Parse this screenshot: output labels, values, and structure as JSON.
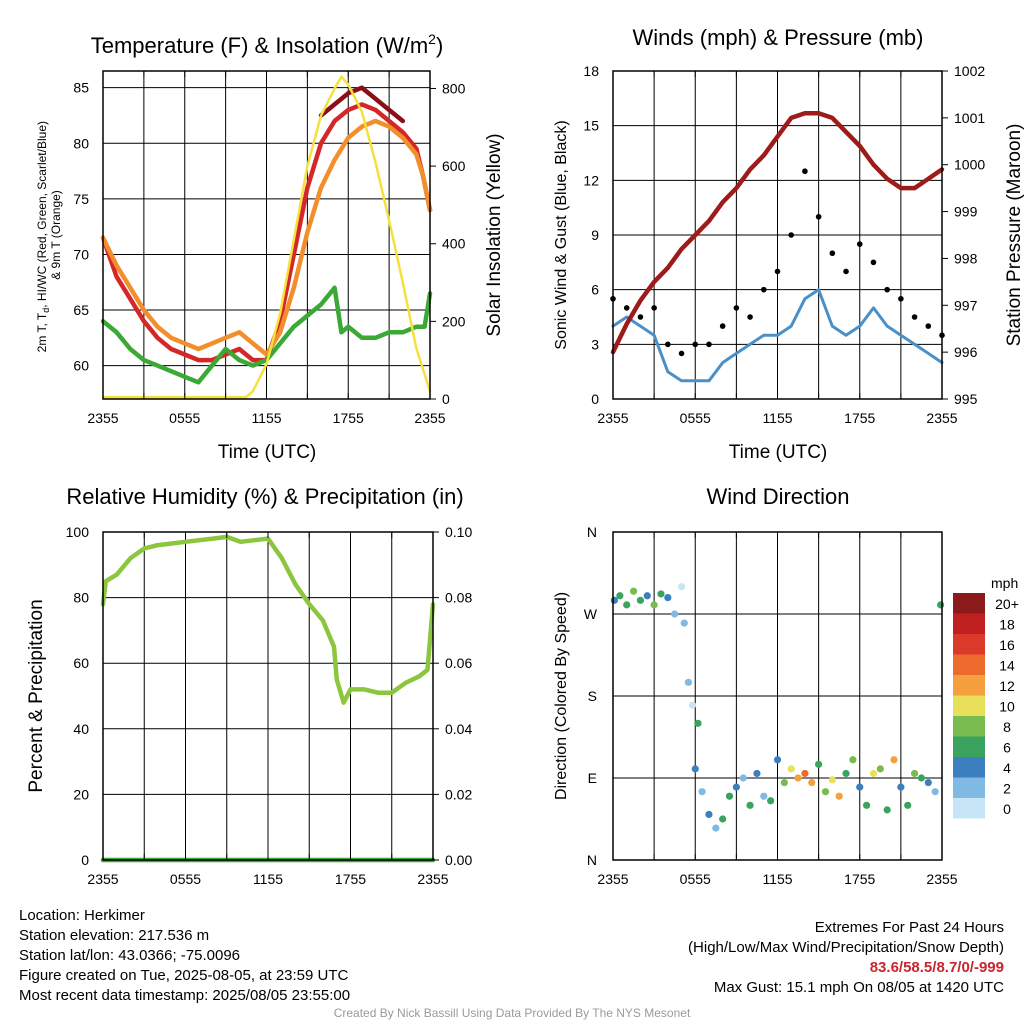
{
  "chart_data": [
    {
      "type": "line",
      "title": "Temperature (F) & Insolation (W/m²)",
      "xlabel": "Time (UTC)",
      "ylabel": "2m T, Td, HI/WC (Red, Green, Scarlet/Blue) & 9m T (Orange)",
      "ylabel_right": "Solar Insolation (Yellow)",
      "x_ticks": [
        "2355",
        "0555",
        "1155",
        "1755",
        "2355"
      ],
      "ylim": [
        57,
        86.5
      ],
      "yticks": [
        60,
        65,
        70,
        75,
        80,
        85
      ],
      "ylim_right": [
        0,
        845
      ],
      "yticks_right": [
        0,
        200,
        400,
        600,
        800
      ],
      "x_hours": [
        0,
        24
      ],
      "grid": true,
      "series": [
        {
          "name": "2m T",
          "color": "#d62728",
          "axis": "left",
          "x": [
            0,
            1,
            2,
            3,
            4,
            5,
            6,
            7,
            8,
            9,
            10,
            11,
            12,
            13,
            14,
            15,
            16,
            17,
            18,
            19,
            20,
            21,
            22,
            23,
            23.5,
            24
          ],
          "y": [
            71.5,
            68,
            66,
            64,
            62.5,
            61.5,
            61,
            60.5,
            60.5,
            61,
            61.5,
            60.5,
            60.5,
            64,
            70,
            76,
            80,
            82,
            83,
            83.5,
            83,
            82,
            81,
            79.5,
            77,
            74
          ]
        },
        {
          "name": "9m T",
          "color": "#f28e2b",
          "axis": "left",
          "x": [
            0,
            1,
            2,
            3,
            4,
            5,
            6,
            7,
            8,
            9,
            10,
            11,
            12,
            13,
            14,
            15,
            16,
            17,
            18,
            19,
            20,
            21,
            22,
            23,
            23.5,
            24
          ],
          "y": [
            71.5,
            69,
            67,
            65,
            63.5,
            62.5,
            62,
            61.5,
            62,
            62.5,
            63,
            62,
            61,
            63,
            67,
            72,
            76,
            78.5,
            80.5,
            81.5,
            82,
            81.5,
            80.5,
            79,
            77,
            74
          ]
        },
        {
          "name": "HI/WC",
          "color": "#8b0f17",
          "axis": "left",
          "x": [
            16,
            17,
            18,
            19,
            20,
            21,
            22
          ],
          "y": [
            82.5,
            83.5,
            84.5,
            85,
            84,
            83,
            82
          ]
        },
        {
          "name": "Td",
          "color": "#3aa935",
          "axis": "left",
          "x": [
            0,
            1,
            2,
            3,
            4,
            5,
            6,
            7,
            8,
            9,
            10,
            11,
            12,
            13,
            14,
            15,
            16,
            17,
            17.5,
            18,
            19,
            20,
            21,
            22,
            23,
            23.6,
            24
          ],
          "y": [
            64,
            63,
            61.5,
            60.5,
            60,
            59.5,
            59,
            58.5,
            60,
            61.5,
            60.5,
            60,
            60.5,
            62,
            63.5,
            64.5,
            65.5,
            67,
            63,
            63.5,
            62.5,
            62.5,
            63,
            63,
            63.5,
            63.5,
            66.5
          ]
        },
        {
          "name": "Solar Insolation",
          "color": "#f5e13b",
          "axis": "right",
          "x": [
            0,
            10.5,
            11,
            12,
            13,
            14,
            15,
            16,
            17,
            17.5,
            18,
            19,
            20,
            21,
            22,
            23,
            24
          ],
          "y": [
            5,
            5,
            20,
            90,
            220,
            410,
            600,
            730,
            800,
            830,
            810,
            740,
            610,
            460,
            300,
            130,
            20
          ]
        }
      ]
    },
    {
      "type": "line",
      "title": "Winds (mph) & Pressure (mb)",
      "xlabel": "Time (UTC)",
      "ylabel": "Sonic Wind & Gust (Blue, Black)",
      "ylabel_right": "Station Pressure (Maroon)",
      "x_ticks": [
        "2355",
        "0555",
        "1155",
        "1755",
        "2355"
      ],
      "ylim": [
        0,
        18
      ],
      "yticks": [
        0,
        3,
        6,
        9,
        12,
        15,
        18
      ],
      "ylim_right": [
        995,
        1002
      ],
      "yticks_right": [
        995,
        996,
        997,
        998,
        999,
        1000,
        1001,
        1002
      ],
      "x_hours": [
        0,
        24
      ],
      "grid": true,
      "series": [
        {
          "name": "Sonic Wind",
          "color": "#4a90c8",
          "axis": "left",
          "x": [
            0,
            1,
            2,
            3,
            4,
            5,
            6,
            7,
            8,
            9,
            10,
            11,
            12,
            13,
            14,
            15,
            16,
            17,
            18,
            19,
            20,
            21,
            22,
            23,
            24
          ],
          "y": [
            4,
            4.5,
            4,
            3.5,
            1.5,
            1,
            1,
            1,
            2,
            2.5,
            3,
            3.5,
            3.5,
            4,
            5.5,
            6,
            4,
            3.5,
            4,
            5,
            4,
            3.5,
            3,
            2.5,
            2
          ]
        },
        {
          "name": "Gust",
          "color": "#000000",
          "axis": "left",
          "x": [
            0,
            1,
            2,
            3,
            4,
            5,
            6,
            7,
            8,
            9,
            10,
            11,
            12,
            13,
            14,
            15,
            16,
            17,
            18,
            19,
            20,
            21,
            22,
            23,
            24
          ],
          "y": [
            5.5,
            5,
            4.5,
            5,
            3,
            2.5,
            3,
            3,
            4,
            5,
            4.5,
            6,
            7,
            9,
            12.5,
            10,
            8,
            7,
            8.5,
            7.5,
            6,
            5.5,
            4.5,
            4,
            3.5
          ]
        },
        {
          "name": "Station Pressure",
          "color": "#9e1b1b",
          "axis": "right",
          "x": [
            0,
            1,
            2,
            3,
            4,
            5,
            6,
            7,
            8,
            9,
            10,
            11,
            12,
            13,
            14,
            15,
            16,
            17,
            18,
            19,
            20,
            21,
            22,
            23,
            24
          ],
          "y": [
            996,
            996.6,
            997.1,
            997.5,
            997.8,
            998.2,
            998.5,
            998.8,
            999.2,
            999.5,
            999.9,
            1000.2,
            1000.6,
            1001.0,
            1001.1,
            1001.1,
            1001.0,
            1000.7,
            1000.4,
            1000.0,
            999.7,
            999.5,
            999.5,
            999.7,
            999.9
          ]
        }
      ]
    },
    {
      "type": "line",
      "title": "Relative Humidity (%) & Precipitation (in)",
      "xlabel": "",
      "ylabel": "Percent & Precipitation",
      "x_ticks": [
        "2355",
        "0555",
        "1155",
        "1755",
        "2355"
      ],
      "ylim": [
        0,
        100
      ],
      "yticks": [
        0,
        20,
        40,
        60,
        80,
        100
      ],
      "ylim_right": [
        0,
        0.1
      ],
      "yticks_right": [
        "0.00",
        "0.02",
        "0.04",
        "0.06",
        "0.08",
        "0.10"
      ],
      "x_hours": [
        0,
        24
      ],
      "grid": true,
      "series": [
        {
          "name": "Relative Humidity",
          "color": "#8cc63f",
          "axis": "left",
          "x": [
            0,
            0.2,
            1,
            2,
            3,
            4,
            5,
            6,
            7,
            8,
            9,
            10,
            11,
            12,
            13,
            14,
            15,
            16,
            16.8,
            17,
            17.5,
            18,
            19,
            20,
            21,
            22,
            23,
            23.6,
            24
          ],
          "y": [
            78,
            85,
            87,
            92,
            95,
            96,
            96.5,
            97,
            97.5,
            98,
            98.5,
            97,
            97.5,
            98,
            92,
            84,
            78,
            73,
            65,
            55,
            48,
            52,
            52,
            51,
            51,
            54,
            56,
            58,
            78
          ]
        },
        {
          "name": "Precipitation",
          "color": "#3aa935",
          "axis": "right",
          "x": [
            0,
            24
          ],
          "y": [
            0,
            0
          ]
        }
      ]
    },
    {
      "type": "scatter",
      "title": "Wind Direction",
      "xlabel": "",
      "ylabel": "Direction (Colored By Speed)",
      "x_ticks": [
        "2355",
        "0555",
        "1155",
        "1755",
        "2355"
      ],
      "yticks": [
        "N",
        "E",
        "S",
        "W",
        "N"
      ],
      "ylim": [
        0,
        360
      ],
      "x_hours": [
        0,
        24
      ],
      "grid": true,
      "colorbar": {
        "unit": "mph",
        "labels": [
          "20+",
          "18",
          "16",
          "14",
          "12",
          "10",
          "8",
          "6",
          "4",
          "2",
          "0"
        ],
        "colors": [
          "#8b1a1a",
          "#c0201f",
          "#db3a2a",
          "#ee6b2e",
          "#f5a03e",
          "#e8e05a",
          "#79bb4e",
          "#3aa35f",
          "#3b7fbf",
          "#80b9e3",
          "#c6e6f7"
        ]
      },
      "series": [
        {
          "name": "Direction",
          "axis": "left",
          "x": [
            0.1,
            0.5,
            1,
            1.5,
            2,
            2.5,
            3,
            3.5,
            4,
            4.5,
            5,
            5.2,
            5.5,
            5.8,
            6,
            6.2,
            6.5,
            7,
            7.5,
            8,
            8.5,
            9,
            9.5,
            10,
            10.5,
            11,
            11.5,
            12,
            12.5,
            13,
            13.5,
            14,
            14.5,
            15,
            15.5,
            16,
            16.5,
            17,
            17.5,
            18,
            18.5,
            19,
            19.5,
            20,
            20.5,
            21,
            21.5,
            22,
            22.5,
            23,
            23.5,
            23.9
          ],
          "y": [
            285,
            290,
            280,
            295,
            285,
            290,
            280,
            292,
            288,
            270,
            300,
            260,
            195,
            170,
            100,
            150,
            75,
            50,
            35,
            45,
            70,
            80,
            90,
            60,
            95,
            70,
            65,
            110,
            85,
            100,
            90,
            95,
            85,
            105,
            75,
            88,
            70,
            95,
            110,
            80,
            60,
            95,
            100,
            55,
            110,
            80,
            60,
            95,
            90,
            85,
            75,
            280
          ],
          "speeds": [
            2,
            3,
            3,
            4,
            3,
            2,
            4,
            3,
            2,
            1,
            0,
            1,
            1,
            0,
            2,
            3,
            1,
            2,
            1,
            3,
            3,
            2,
            1,
            3,
            2,
            1,
            3,
            2,
            4,
            5,
            6,
            7,
            6,
            3,
            4,
            5,
            6,
            3,
            4,
            2,
            3,
            5,
            4,
            3,
            6,
            2,
            3,
            4,
            3,
            2,
            1,
            3
          ]
        }
      ]
    }
  ],
  "info": {
    "location": "Location: Herkimer",
    "elevation": "Station elevation: 217.536 m",
    "latlon": "Station lat/lon: 43.0366; -75.0096",
    "created": "Figure created on Tue, 2025-08-05, at 23:59 UTC",
    "recent": "Most recent data timestamp: 2025/08/05 23:55:00"
  },
  "extremes": {
    "title": "Extremes For Past 24 Hours",
    "subtitle": "(High/Low/Max Wind/Precipitation/Snow Depth)",
    "values": "83.6/58.5/8.7/0/-999",
    "max_gust": "Max Gust: 15.1 mph On 08/05 at 1420 UTC"
  },
  "credit": "Created By Nick Bassill Using Data Provided By The NYS Mesonet"
}
